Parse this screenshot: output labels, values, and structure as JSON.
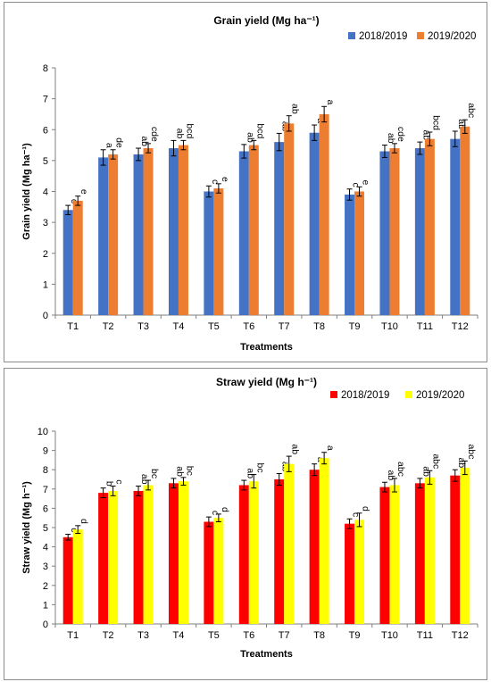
{
  "chart_data": [
    {
      "type": "bar",
      "title": "Grain yield  (Mg ha⁻¹)",
      "xlabel": "Treatments",
      "ylabel": "Grain yield  (Mg ha⁻¹)",
      "ylim": [
        0,
        8
      ],
      "yticks": [
        0,
        1,
        2,
        3,
        4,
        5,
        6,
        7,
        8
      ],
      "legend_position": "top-right",
      "grid": false,
      "categories": [
        "T1",
        "T2",
        "T3",
        "T4",
        "T5",
        "T6",
        "T7",
        "T8",
        "T9",
        "T10",
        "T11",
        "T12"
      ],
      "series": [
        {
          "name": "2018/2019",
          "color": "#4472C4",
          "values": [
            3.4,
            5.1,
            5.2,
            5.4,
            4.0,
            5.3,
            5.6,
            5.9,
            3.9,
            5.3,
            5.4,
            5.7
          ],
          "errors": [
            0.15,
            0.25,
            0.2,
            0.25,
            0.18,
            0.22,
            0.28,
            0.25,
            0.18,
            0.2,
            0.2,
            0.25
          ],
          "letters": [
            "c",
            "a",
            "ab",
            "ab",
            "c",
            "ab",
            "ab",
            "a",
            "c",
            "ab",
            "ab",
            "ab"
          ]
        },
        {
          "name": "2019/2020",
          "color": "#ED7D31",
          "values": [
            3.7,
            5.2,
            5.4,
            5.5,
            4.1,
            5.5,
            6.2,
            6.5,
            4.0,
            5.4,
            5.7,
            6.1
          ],
          "errors": [
            0.15,
            0.15,
            0.15,
            0.15,
            0.15,
            0.15,
            0.25,
            0.25,
            0.15,
            0.15,
            0.22,
            0.22
          ],
          "letters": [
            "e",
            "de",
            "cde",
            "bcd",
            "e",
            "bcd",
            "ab",
            "a",
            "e",
            "cde",
            "bcd",
            "abc"
          ]
        }
      ]
    },
    {
      "type": "bar",
      "title": "Straw yield (Mg h⁻¹)",
      "xlabel": "Treatments",
      "ylabel": "Straw yield (Mg h⁻¹)",
      "ylim": [
        0,
        10
      ],
      "yticks": [
        0,
        1,
        2,
        3,
        4,
        5,
        6,
        7,
        8,
        9,
        10
      ],
      "legend_position": "top-right",
      "grid": false,
      "categories": [
        "T1",
        "T2",
        "T3",
        "T4",
        "T5",
        "T6",
        "T7",
        "T8",
        "T9",
        "T10",
        "T11",
        "T12"
      ],
      "series": [
        {
          "name": "2018/2019",
          "color": "#FF0000",
          "values": [
            4.5,
            6.8,
            6.9,
            7.3,
            5.3,
            7.2,
            7.5,
            8.0,
            5.2,
            7.1,
            7.3,
            7.7
          ],
          "errors": [
            0.15,
            0.25,
            0.25,
            0.25,
            0.25,
            0.25,
            0.3,
            0.3,
            0.25,
            0.25,
            0.25,
            0.3
          ],
          "letters": [
            "c",
            "b",
            "ab",
            "ab",
            "c",
            "ab",
            "ab",
            "a",
            "c",
            "ab",
            "ab",
            "ab"
          ]
        },
        {
          "name": "2019/2020",
          "color": "#FFFF00",
          "values": [
            4.9,
            6.9,
            7.2,
            7.4,
            5.5,
            7.4,
            8.3,
            8.6,
            5.4,
            7.2,
            7.6,
            8.1
          ],
          "errors": [
            0.2,
            0.25,
            0.25,
            0.2,
            0.2,
            0.35,
            0.4,
            0.3,
            0.35,
            0.35,
            0.35,
            0.35
          ],
          "letters": [
            "d",
            "c",
            "bc",
            "bc",
            "d",
            "bc",
            "ab",
            "a",
            "d",
            "abc",
            "abc",
            "abc"
          ]
        }
      ]
    }
  ]
}
